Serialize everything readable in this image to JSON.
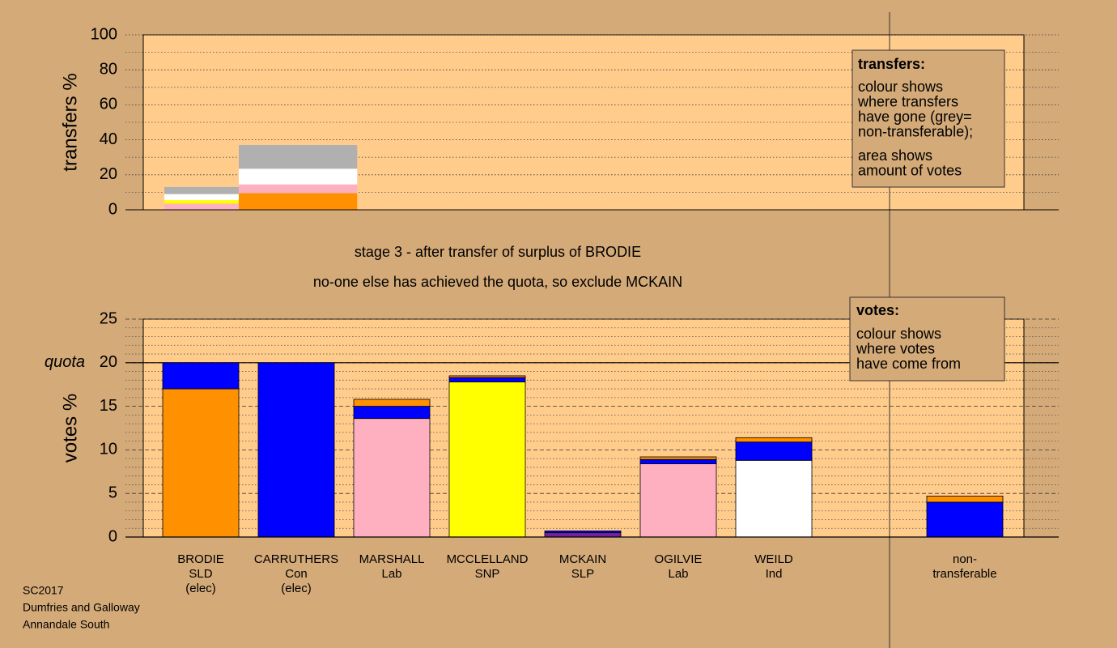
{
  "chart_data": [
    {
      "type": "bar",
      "ylabel": "transfers %",
      "ylim": [
        0,
        100
      ],
      "yticks": [
        0,
        20,
        40,
        60,
        80,
        100
      ],
      "minor_yticks": [
        10,
        30,
        50,
        70,
        90
      ],
      "grid": true,
      "categories": [
        null,
        null
      ],
      "widths": [
        1,
        1.59
      ],
      "series": [
        {
          "color": "#ff9000",
          "values": [
            null,
            9.5
          ]
        },
        {
          "color": "#ffb0c0",
          "values": [
            3.5,
            5
          ]
        },
        {
          "color": "#ffff00",
          "values": [
            2,
            null
          ]
        },
        {
          "color": "#ffffff",
          "values": [
            3.5,
            9
          ]
        },
        {
          "color": "#b0b0b0",
          "values": [
            4,
            13.5
          ]
        }
      ],
      "legend": {
        "title": "transfers:",
        "lines": [
          "colour shows",
          "where transfers",
          "have gone (grey=",
          "non-transferable);"
        ],
        "lines2": [
          "area shows",
          "amount of votes"
        ]
      }
    },
    {
      "type": "stacked_bar",
      "ylabel": "votes %",
      "ylim": [
        0,
        25
      ],
      "yticks": [
        0,
        5,
        10,
        15,
        20,
        25
      ],
      "minor_yticks": [
        1,
        2,
        3,
        4,
        6,
        7,
        8,
        9,
        11,
        12,
        13,
        14,
        16,
        17,
        18,
        19,
        21,
        22,
        23,
        24
      ],
      "grid": true,
      "quota": {
        "value": 20,
        "label": "quota"
      },
      "subtitle": [
        "stage 3 - after transfer of surplus of BRODIE",
        "no-one else has achieved the quota, so exclude MCKAIN"
      ],
      "categories": [
        [
          "BRODIE",
          "SLD",
          "(elec)"
        ],
        [
          "CARRUTHERS",
          "Con",
          "(elec)"
        ],
        [
          "MARSHALL",
          "Lab"
        ],
        [
          "MCCLELLAND",
          "SNP"
        ],
        [
          "MCKAIN",
          "SLP"
        ],
        [
          "OGILVIE",
          "Lab"
        ],
        [
          "WEILD",
          "Ind"
        ],
        null,
        [
          "non-",
          "transferable"
        ]
      ],
      "series": [
        {
          "colors": [
            "#ff9000",
            "#0000ff",
            "#ffb0c0",
            "#ffff00",
            "#7020a0",
            "#ffb0c0",
            "#ffffff",
            null,
            null
          ],
          "values": [
            17,
            20,
            13.6,
            17.8,
            0.5,
            8.4,
            8.8,
            null,
            null
          ]
        },
        {
          "color": "#0000ff",
          "values": [
            3,
            null,
            1.4,
            0.5,
            0.2,
            0.5,
            2.1,
            null,
            4.0
          ]
        },
        {
          "color": "#ff9000",
          "values": [
            null,
            null,
            0.8,
            0.2,
            null,
            0.3,
            0.5,
            null,
            0.7
          ]
        }
      ],
      "legend": {
        "title": "votes:",
        "lines": [
          "colour shows",
          "where votes",
          "have come from"
        ]
      }
    }
  ],
  "footer": [
    "SC2017",
    "Dumfries and Galloway",
    "Annandale South"
  ]
}
